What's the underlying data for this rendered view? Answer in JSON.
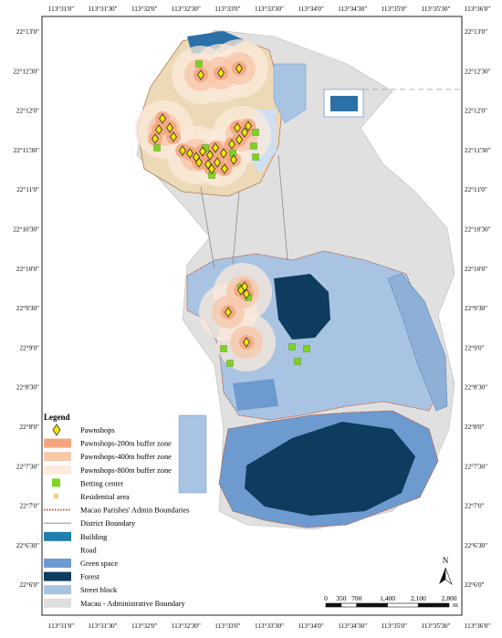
{
  "axes": {
    "longitude_labels": [
      "113°31'0\"",
      "113°31'30\"",
      "113°32'0\"",
      "113°32'30\"",
      "113°33'0\"",
      "113°33'30\"",
      "113°34'0\"",
      "113°34'30\"",
      "113°35'0\"",
      "113°35'30\"",
      "113°36'0\""
    ],
    "latitude_labels": [
      "22°13'0\"",
      "22°12'30\"",
      "22°12'0\"",
      "22°11'30\"",
      "22°11'0\"",
      "22°10'30\"",
      "22°10'0\"",
      "22°9'30\"",
      "22°9'0\"",
      "22°8'30\"",
      "22°8'0\"",
      "22°7'30\"",
      "22°7'0\"",
      "22°6'30\"",
      "22°6'0\""
    ]
  },
  "legend": {
    "title": "Legend",
    "items": [
      {
        "label": "Pawnshops",
        "symbol": "diamond",
        "color": "#f2e600"
      },
      {
        "label": "Pawnshops-200m buffer zone",
        "symbol": "rect",
        "color": "#f4a57e"
      },
      {
        "label": "Pawnshops-400m buffer zone",
        "symbol": "rect",
        "color": "#f8c8ab"
      },
      {
        "label": "Pawnshops-800m buffer zone",
        "symbol": "rect",
        "color": "#fbeadb"
      },
      {
        "label": "Betting center",
        "symbol": "square",
        "color": "#7ed321"
      },
      {
        "label": "Residential area",
        "symbol": "small-square",
        "color": "#f5c98a"
      },
      {
        "label": "Macao Parishes' Admin Boundaries",
        "symbol": "dotted-line",
        "color": "#b33a1a"
      },
      {
        "label": "District Boundary",
        "symbol": "line",
        "color": "#9a9a9a"
      },
      {
        "label": "Building",
        "symbol": "rect",
        "color": "#1f7fae"
      },
      {
        "label": "Road",
        "symbol": "rect",
        "color": "#ffffff"
      },
      {
        "label": "Green space",
        "symbol": "rect",
        "color": "#6d9bd0"
      },
      {
        "label": "Forest",
        "symbol": "rect",
        "color": "#0e3c5e"
      },
      {
        "label": "Street block",
        "symbol": "rect",
        "color": "#a9c4e3"
      },
      {
        "label": "Macau - Administrative Boundary",
        "symbol": "rect",
        "color": "#dedede"
      }
    ]
  },
  "scale_bar": {
    "labels": [
      "0",
      "350",
      "700",
      "1,400",
      "2,100",
      "2,800"
    ],
    "unit": "m"
  },
  "north_arrow": {
    "label": "N"
  },
  "pawnshops": [
    {
      "x": 220,
      "y": 82
    },
    {
      "x": 242,
      "y": 80
    },
    {
      "x": 262,
      "y": 75
    },
    {
      "x": 178,
      "y": 130
    },
    {
      "x": 186,
      "y": 140
    },
    {
      "x": 174,
      "y": 142
    },
    {
      "x": 170,
      "y": 152
    },
    {
      "x": 190,
      "y": 150
    },
    {
      "x": 200,
      "y": 165
    },
    {
      "x": 208,
      "y": 168
    },
    {
      "x": 215,
      "y": 172
    },
    {
      "x": 222,
      "y": 166
    },
    {
      "x": 230,
      "y": 170
    },
    {
      "x": 236,
      "y": 162
    },
    {
      "x": 245,
      "y": 168
    },
    {
      "x": 238,
      "y": 178
    },
    {
      "x": 228,
      "y": 180
    },
    {
      "x": 218,
      "y": 178
    },
    {
      "x": 246,
      "y": 185
    },
    {
      "x": 256,
      "y": 175
    },
    {
      "x": 260,
      "y": 140
    },
    {
      "x": 268,
      "y": 145
    },
    {
      "x": 262,
      "y": 153
    },
    {
      "x": 272,
      "y": 138
    },
    {
      "x": 254,
      "y": 158
    },
    {
      "x": 232,
      "y": 185
    },
    {
      "x": 264,
      "y": 318
    },
    {
      "x": 270,
      "y": 322
    },
    {
      "x": 268,
      "y": 314
    },
    {
      "x": 250,
      "y": 342
    },
    {
      "x": 270,
      "y": 375
    }
  ],
  "betting_centers": [
    {
      "x": 218,
      "y": 70
    },
    {
      "x": 172,
      "y": 162
    },
    {
      "x": 225,
      "y": 162
    },
    {
      "x": 255,
      "y": 168
    },
    {
      "x": 280,
      "y": 145
    },
    {
      "x": 278,
      "y": 160
    },
    {
      "x": 280,
      "y": 172
    },
    {
      "x": 232,
      "y": 192
    },
    {
      "x": 264,
      "y": 315
    },
    {
      "x": 272,
      "y": 326
    },
    {
      "x": 245,
      "y": 382
    },
    {
      "x": 252,
      "y": 398
    },
    {
      "x": 320,
      "y": 380
    },
    {
      "x": 336,
      "y": 382
    },
    {
      "x": 326,
      "y": 396
    }
  ],
  "buffer_centers": [
    {
      "x": 220,
      "y": 82
    },
    {
      "x": 242,
      "y": 80
    },
    {
      "x": 262,
      "y": 75
    },
    {
      "x": 180,
      "y": 142
    },
    {
      "x": 215,
      "y": 170
    },
    {
      "x": 240,
      "y": 172
    },
    {
      "x": 265,
      "y": 148
    },
    {
      "x": 266,
      "y": 320
    },
    {
      "x": 250,
      "y": 342
    },
    {
      "x": 270,
      "y": 375
    }
  ]
}
